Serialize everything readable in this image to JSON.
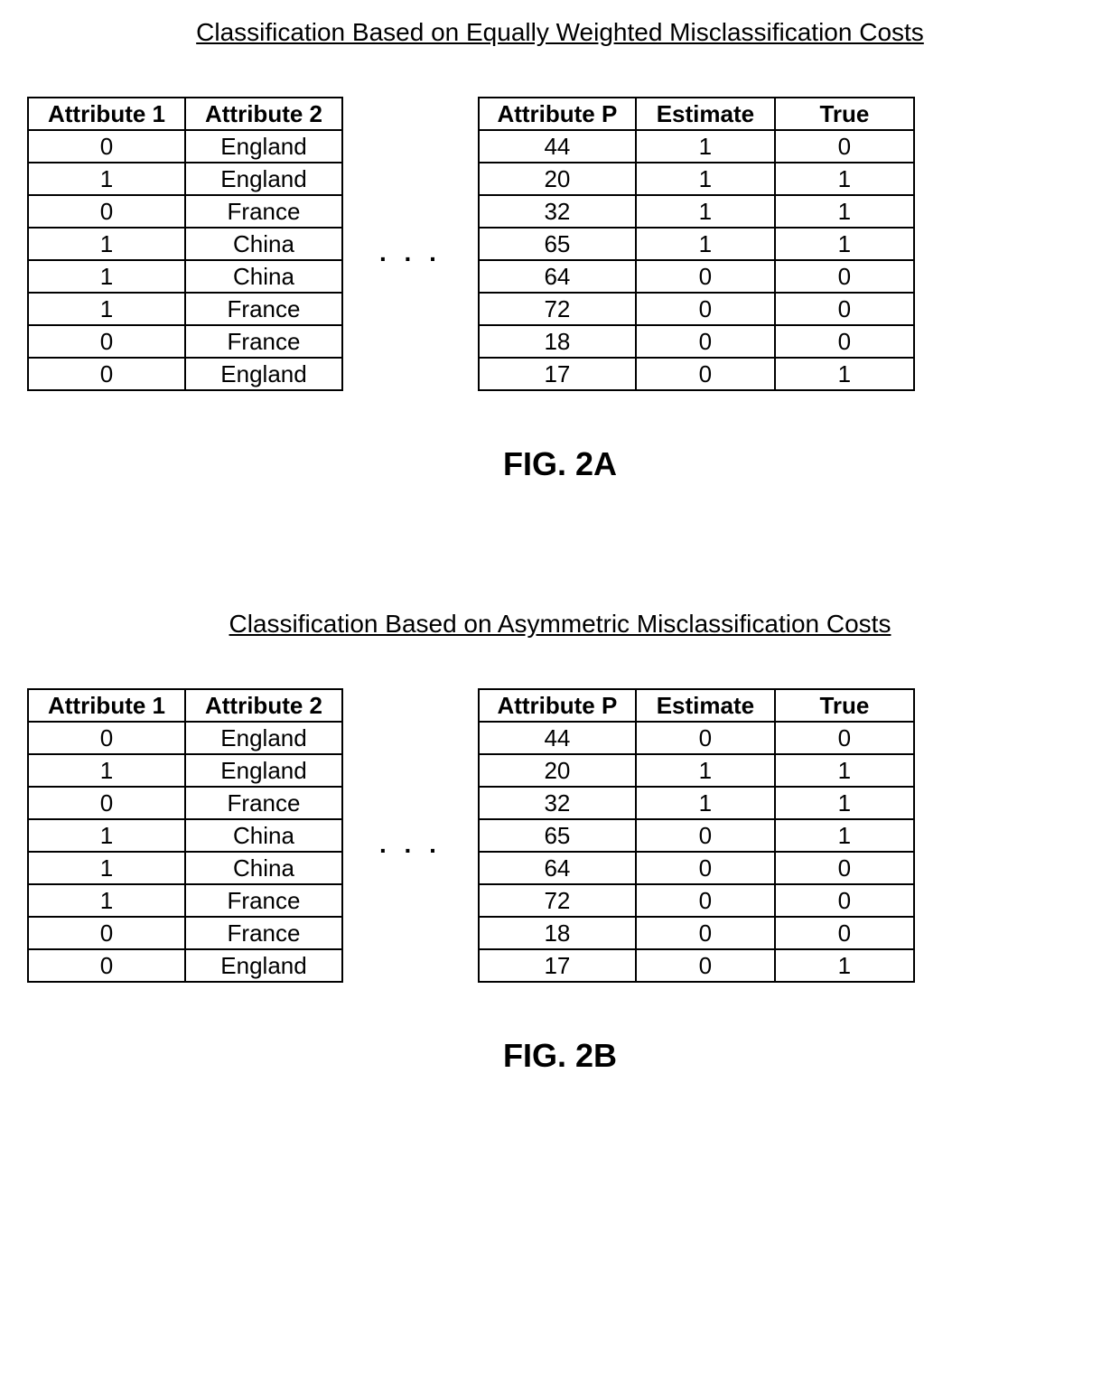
{
  "figA": {
    "title": "Classification Based on Equally Weighted Misclassification Costs",
    "label": "FIG. 2A",
    "ellipsis": ". . .",
    "leftTable": {
      "headers": [
        "Attribute 1",
        "Attribute 2"
      ],
      "rows": [
        [
          "0",
          "England"
        ],
        [
          "1",
          "England"
        ],
        [
          "0",
          "France"
        ],
        [
          "1",
          "China"
        ],
        [
          "1",
          "China"
        ],
        [
          "1",
          "France"
        ],
        [
          "0",
          "France"
        ],
        [
          "0",
          "England"
        ]
      ]
    },
    "rightTable": {
      "headers": [
        "Attribute P",
        "Estimate",
        "True"
      ],
      "rows": [
        [
          "44",
          "1",
          "0"
        ],
        [
          "20",
          "1",
          "1"
        ],
        [
          "32",
          "1",
          "1"
        ],
        [
          "65",
          "1",
          "1"
        ],
        [
          "64",
          "0",
          "0"
        ],
        [
          "72",
          "0",
          "0"
        ],
        [
          "18",
          "0",
          "0"
        ],
        [
          "17",
          "0",
          "1"
        ]
      ]
    }
  },
  "figB": {
    "title": "Classification Based on Asymmetric Misclassification Costs",
    "label": "FIG. 2B",
    "ellipsis": ". . .",
    "leftTable": {
      "headers": [
        "Attribute 1",
        "Attribute 2"
      ],
      "rows": [
        [
          "0",
          "England"
        ],
        [
          "1",
          "England"
        ],
        [
          "0",
          "France"
        ],
        [
          "1",
          "China"
        ],
        [
          "1",
          "China"
        ],
        [
          "1",
          "France"
        ],
        [
          "0",
          "France"
        ],
        [
          "0",
          "England"
        ]
      ]
    },
    "rightTable": {
      "headers": [
        "Attribute P",
        "Estimate",
        "True"
      ],
      "rows": [
        [
          "44",
          "0",
          "0"
        ],
        [
          "20",
          "1",
          "1"
        ],
        [
          "32",
          "1",
          "1"
        ],
        [
          "65",
          "0",
          "1"
        ],
        [
          "64",
          "0",
          "0"
        ],
        [
          "72",
          "0",
          "0"
        ],
        [
          "18",
          "0",
          "0"
        ],
        [
          "17",
          "0",
          "1"
        ]
      ]
    }
  }
}
